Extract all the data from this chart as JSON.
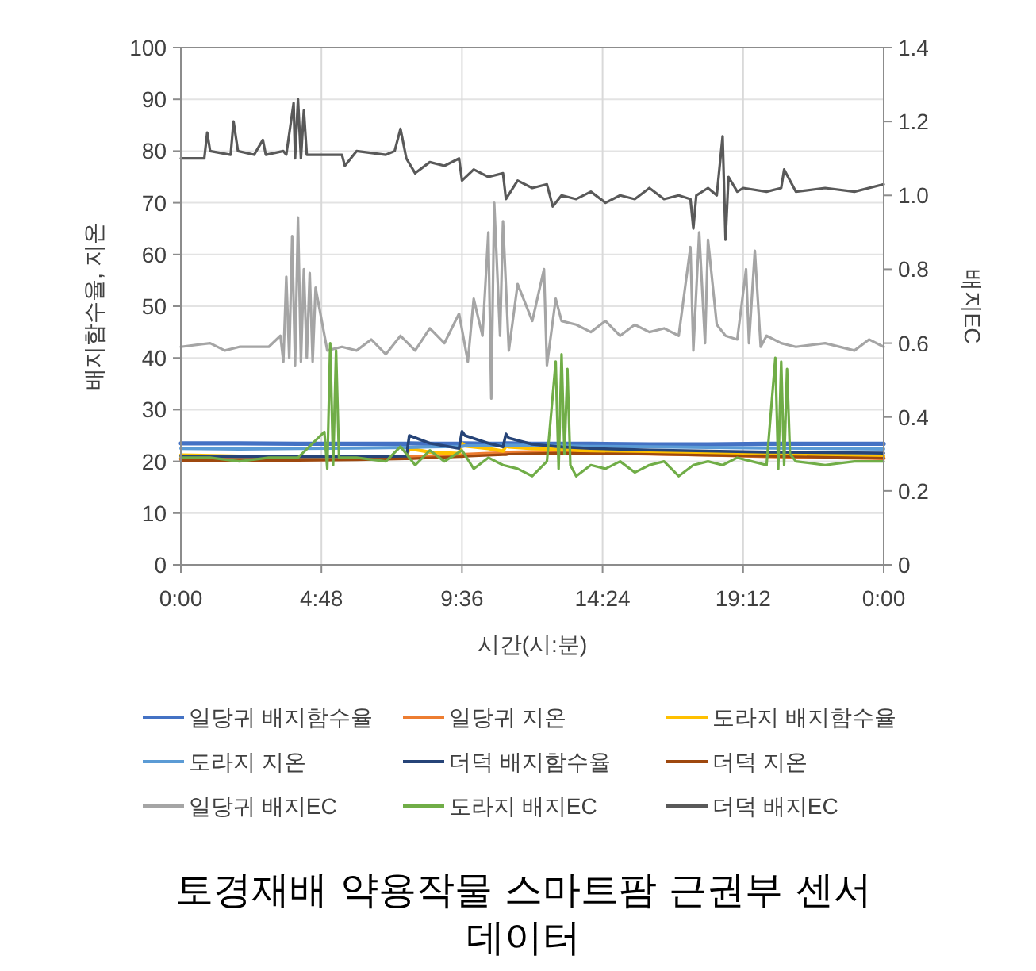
{
  "chart_data": {
    "type": "line",
    "title": "토경재배 약용작물 스마트팜 근권부 센서 데이터",
    "xlabel": "시간(시:분)",
    "ylabel": "배지함수율, 지온",
    "y2label": "배지EC",
    "xlim": [
      0,
      24
    ],
    "xticks": [
      {
        "value": 0,
        "label": "0:00"
      },
      {
        "value": 4.8,
        "label": "4:48"
      },
      {
        "value": 9.6,
        "label": "9:36"
      },
      {
        "value": 14.4,
        "label": "14:24"
      },
      {
        "value": 19.2,
        "label": "19:12"
      },
      {
        "value": 24,
        "label": "0:00"
      }
    ],
    "ylim": [
      0,
      100
    ],
    "yticks": [
      0,
      10,
      20,
      30,
      40,
      50,
      60,
      70,
      80,
      90,
      100
    ],
    "y2lim": [
      0,
      1.4
    ],
    "y2ticks": [
      0,
      0.2,
      0.4,
      0.6,
      0.8,
      {
        "value": 1,
        "label": "1.0"
      },
      1.2,
      1.4
    ],
    "grid": true,
    "legend": "bottom",
    "x": [
      0,
      2,
      4,
      6,
      7.7,
      7.8,
      8.5,
      9.5,
      9.6,
      9.7,
      10.5,
      11.0,
      11.1,
      11.2,
      12,
      13,
      14,
      16,
      18,
      20,
      22,
      24
    ],
    "series": [
      {
        "name": "일당귀 배지함수율",
        "color": "#4472c4",
        "values": [
          23.5,
          23.5,
          23.4,
          23.4,
          23.4,
          23.5,
          23.4,
          23.4,
          23.5,
          23.5,
          23.4,
          23.4,
          23.5,
          23.5,
          23.4,
          23.4,
          23.4,
          23.3,
          23.3,
          23.4,
          23.4,
          23.4
        ]
      },
      {
        "name": "일당귀 지온",
        "color": "#ed7d31",
        "values": [
          20.5,
          20.4,
          20.5,
          20.6,
          20.8,
          20.8,
          21.0,
          21.2,
          21.2,
          21.3,
          21.5,
          21.6,
          21.6,
          21.7,
          21.8,
          21.8,
          21.7,
          21.5,
          21.3,
          21.0,
          20.8,
          20.6
        ]
      },
      {
        "name": "도라지 배지함수율",
        "color": "#ffc000",
        "values": [
          21.2,
          21.0,
          21.0,
          21.0,
          21.0,
          22.5,
          21.8,
          21.5,
          23.5,
          23.0,
          22.5,
          22.0,
          23.0,
          22.8,
          22.5,
          22.3,
          22.0,
          21.7,
          21.5,
          21.3,
          21.2,
          21.0
        ]
      },
      {
        "name": "도라지 지온",
        "color": "#5b9bd5",
        "values": [
          22.5,
          22.4,
          22.5,
          22.6,
          22.7,
          22.7,
          22.8,
          22.9,
          22.9,
          23.0,
          23.0,
          23.1,
          23.1,
          23.1,
          23.1,
          23.0,
          22.9,
          22.8,
          22.7,
          22.6,
          22.5,
          22.4
        ]
      },
      {
        "name": "더덕 배지함수율",
        "color": "#264478",
        "values": [
          21.0,
          20.9,
          20.9,
          20.9,
          20.9,
          25.0,
          23.5,
          22.5,
          25.8,
          25.0,
          23.5,
          22.8,
          25.3,
          24.5,
          23.3,
          22.8,
          22.5,
          22.2,
          22.0,
          21.8,
          21.7,
          21.6
        ]
      },
      {
        "name": "더덕 지온",
        "color": "#9e480e",
        "values": [
          20.2,
          20.1,
          20.2,
          20.3,
          20.5,
          20.5,
          20.7,
          20.9,
          20.9,
          21.0,
          21.2,
          21.3,
          21.3,
          21.4,
          21.5,
          21.6,
          21.5,
          21.4,
          21.2,
          21.0,
          20.8,
          20.6
        ]
      },
      {
        "name": "일당귀 배지EC",
        "color": "#a5a5a5",
        "axis": "y2",
        "x": [
          0,
          1.0,
          1.5,
          2.0,
          2.5,
          3.0,
          3.4,
          3.5,
          3.6,
          3.7,
          3.8,
          3.9,
          4.0,
          4.1,
          4.2,
          4.3,
          4.4,
          4.5,
          4.6,
          5.0,
          5.5,
          6.0,
          6.5,
          7.0,
          7.5,
          8.0,
          8.5,
          9.0,
          9.5,
          9.8,
          10.0,
          10.3,
          10.5,
          10.6,
          10.7,
          10.9,
          11.0,
          11.2,
          11.5,
          12.0,
          12.4,
          12.5,
          12.8,
          13.0,
          13.5,
          14.0,
          14.5,
          15.0,
          15.5,
          16.0,
          16.5,
          17.0,
          17.4,
          17.5,
          17.7,
          17.9,
          18.0,
          18.3,
          18.6,
          19.0,
          19.3,
          19.4,
          19.6,
          19.8,
          20.0,
          20.5,
          21.0,
          22.0,
          23.0,
          23.5,
          24.0
        ],
        "values": [
          0.59,
          0.6,
          0.58,
          0.59,
          0.59,
          0.59,
          0.62,
          0.55,
          0.78,
          0.56,
          0.89,
          0.54,
          0.94,
          0.55,
          0.8,
          0.56,
          0.79,
          0.55,
          0.75,
          0.58,
          0.59,
          0.58,
          0.61,
          0.57,
          0.62,
          0.58,
          0.64,
          0.6,
          0.68,
          0.55,
          0.72,
          0.62,
          0.9,
          0.45,
          0.98,
          0.62,
          0.93,
          0.58,
          0.76,
          0.66,
          0.8,
          0.54,
          0.72,
          0.66,
          0.65,
          0.63,
          0.66,
          0.62,
          0.65,
          0.63,
          0.64,
          0.62,
          0.86,
          0.58,
          0.9,
          0.6,
          0.88,
          0.65,
          0.62,
          0.61,
          0.8,
          0.6,
          0.85,
          0.59,
          0.62,
          0.6,
          0.59,
          0.6,
          0.58,
          0.61,
          0.59
        ]
      },
      {
        "name": "도라지 배지EC",
        "color": "#70ad47",
        "axis": "y2",
        "x": [
          0,
          1,
          2,
          3,
          4,
          4.9,
          5.0,
          5.1,
          5.2,
          5.3,
          5.4,
          6,
          7,
          7.5,
          8,
          8.5,
          9,
          9.6,
          10,
          10.5,
          11,
          11.5,
          12,
          12.5,
          12.8,
          12.9,
          13.0,
          13.1,
          13.2,
          13.3,
          13.5,
          14,
          14.5,
          15,
          15.5,
          16,
          16.5,
          17,
          17.5,
          18,
          18.5,
          19,
          19.5,
          20,
          20.3,
          20.4,
          20.5,
          20.6,
          20.7,
          20.8,
          21,
          22,
          23,
          24
        ],
        "values": [
          0.29,
          0.29,
          0.28,
          0.29,
          0.29,
          0.36,
          0.26,
          0.6,
          0.27,
          0.58,
          0.29,
          0.29,
          0.28,
          0.32,
          0.27,
          0.31,
          0.28,
          0.31,
          0.26,
          0.29,
          0.27,
          0.26,
          0.24,
          0.28,
          0.55,
          0.26,
          0.57,
          0.3,
          0.53,
          0.27,
          0.24,
          0.27,
          0.26,
          0.28,
          0.25,
          0.27,
          0.28,
          0.24,
          0.27,
          0.28,
          0.27,
          0.29,
          0.28,
          0.27,
          0.56,
          0.26,
          0.55,
          0.27,
          0.53,
          0.3,
          0.28,
          0.27,
          0.28,
          0.28
        ]
      },
      {
        "name": "더덕 배지EC",
        "color": "#595959",
        "axis": "y2",
        "x": [
          0,
          0.8,
          0.9,
          1.0,
          1.7,
          1.8,
          1.95,
          2.5,
          2.8,
          2.9,
          3.5,
          3.6,
          3.85,
          3.9,
          4.0,
          4.1,
          4.2,
          4.3,
          4.5,
          5.5,
          5.6,
          6.0,
          7.0,
          7.3,
          7.5,
          7.7,
          8.0,
          8.5,
          9.0,
          9.5,
          9.6,
          10.0,
          10.5,
          11.0,
          11.1,
          11.5,
          12.0,
          12.5,
          12.7,
          13.0,
          13.5,
          14.0,
          14.5,
          15.0,
          15.5,
          16.0,
          16.5,
          17.0,
          17.4,
          17.5,
          17.6,
          18.0,
          18.3,
          18.5,
          18.6,
          18.7,
          19.0,
          19.2,
          20.0,
          20.5,
          20.6,
          21.0,
          22.0,
          23.0,
          24.0
        ],
        "values": [
          1.1,
          1.1,
          1.17,
          1.12,
          1.11,
          1.2,
          1.12,
          1.11,
          1.15,
          1.11,
          1.12,
          1.11,
          1.25,
          1.1,
          1.26,
          1.1,
          1.23,
          1.11,
          1.11,
          1.11,
          1.08,
          1.12,
          1.11,
          1.12,
          1.18,
          1.1,
          1.06,
          1.09,
          1.08,
          1.1,
          1.04,
          1.07,
          1.05,
          1.06,
          0.99,
          1.04,
          1.02,
          1.03,
          0.97,
          1.0,
          0.99,
          1.01,
          0.98,
          1.0,
          0.99,
          1.02,
          0.99,
          1.0,
          0.99,
          0.91,
          1.0,
          1.02,
          1.0,
          1.16,
          0.88,
          1.05,
          1.01,
          1.02,
          1.01,
          1.02,
          1.07,
          1.01,
          1.02,
          1.01,
          1.03
        ]
      }
    ]
  }
}
